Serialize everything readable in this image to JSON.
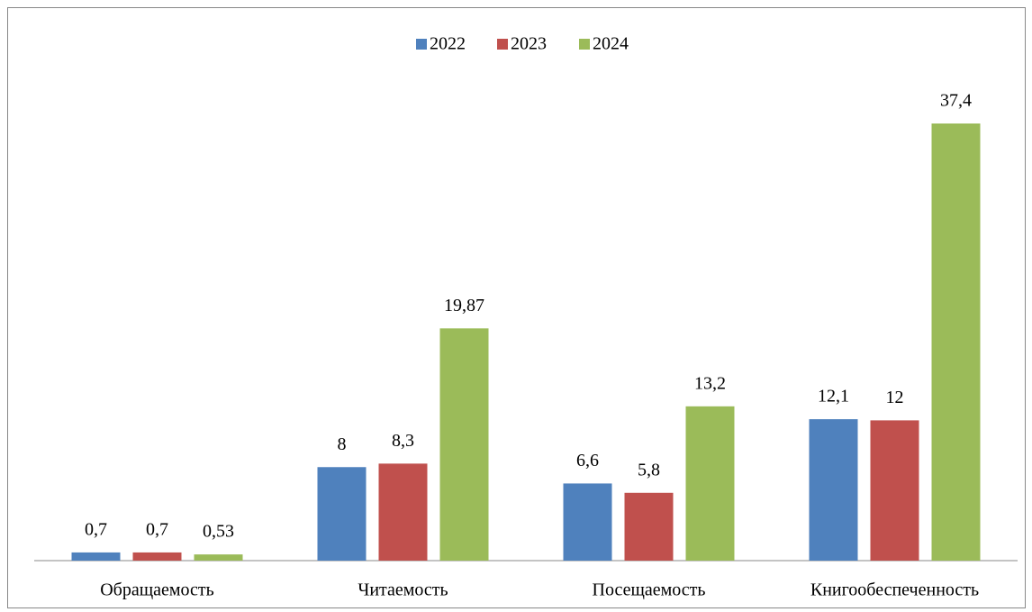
{
  "chart_data": {
    "type": "bar",
    "categories": [
      "Обращаемость",
      "Читаемость",
      "Посещаемость",
      "Книгообеспеченность"
    ],
    "series": [
      {
        "name": "2022",
        "color": "#4f81bd",
        "values": [
          0.7,
          8,
          6.6,
          12.1
        ],
        "value_labels": [
          "0,7",
          "8",
          "6,6",
          "12,1"
        ]
      },
      {
        "name": "2023",
        "color": "#c0504d",
        "values": [
          0.7,
          8.3,
          5.8,
          12
        ],
        "value_labels": [
          "0,7",
          "8,3",
          "5,8",
          "12"
        ]
      },
      {
        "name": "2024",
        "color": "#9bbb59",
        "values": [
          0.53,
          19.87,
          13.2,
          37.4
        ],
        "value_labels": [
          "0,53",
          "19,87",
          "13,2",
          "37,4"
        ]
      }
    ],
    "legend": "top"
  }
}
